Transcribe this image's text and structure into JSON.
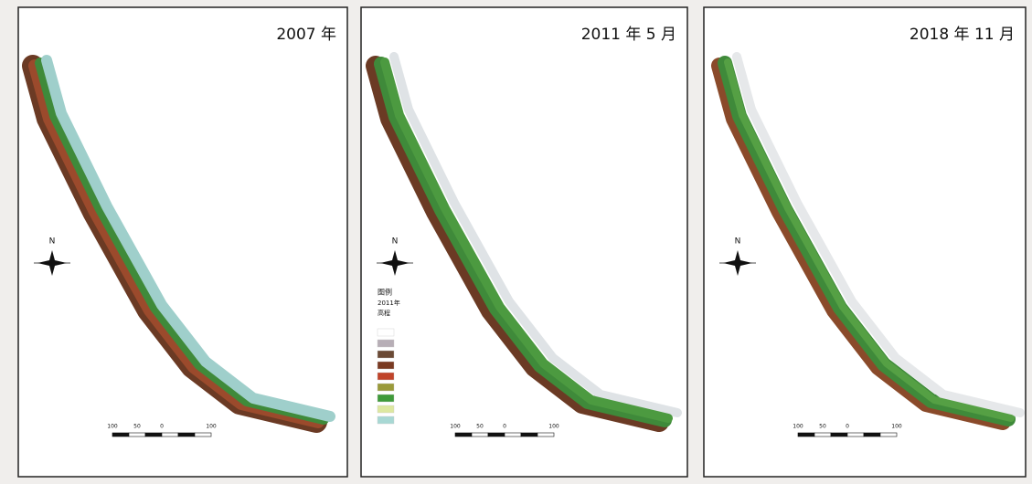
{
  "panels": [
    {
      "title": "2007 年",
      "north": "N",
      "scale": [
        "100",
        "50",
        "0",
        "100"
      ]
    },
    {
      "title": "2011 年 5 月",
      "north": "N",
      "scale": [
        "100",
        "50",
        "0",
        "100"
      ]
    },
    {
      "title": "2018 年 11 月",
      "north": "N",
      "scale": [
        "100",
        "50",
        "0",
        "100"
      ]
    }
  ],
  "legend": {
    "title": "图例",
    "lines": [
      "2011年",
      "高程"
    ]
  }
}
